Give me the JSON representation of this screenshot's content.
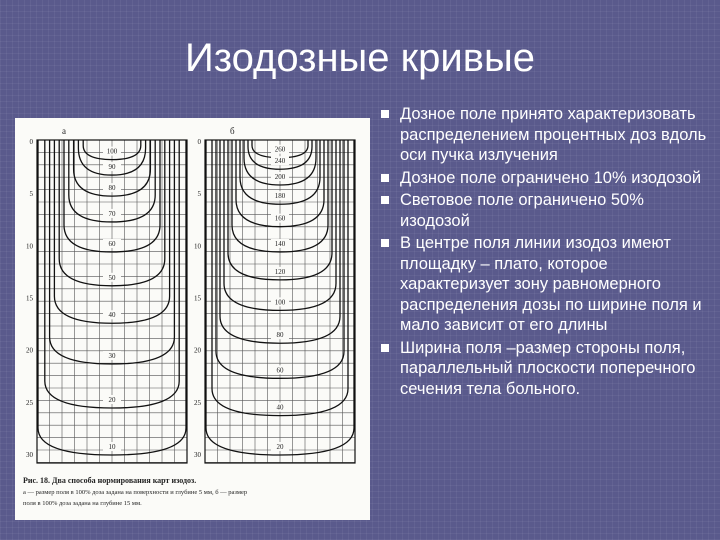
{
  "title": "Изодозные кривые",
  "bullets": [
    "Дозное поле принято характеризовать распределением процентных доз вдоль оси пучка излучения",
    "Дозное поле ограничено 10% изодозой",
    "Световое поле ограничено 50% изодозой",
    "В центре поля линии изодоз имеют площадку – плато, которое характеризует зону равномерного распределения дозы по ширине поля и мало зависит от его длины",
    "Ширина поля –размер стороны поля, параллельный плоскости поперечного сечения тела больного."
  ],
  "figure": {
    "panels": [
      {
        "label": "а",
        "depth_labels": [
          "0",
          "5",
          "10",
          "15",
          "20",
          "25",
          "30"
        ],
        "isodose_labels": [
          "100",
          "90",
          "80",
          "70",
          "60",
          "50",
          "40",
          "30",
          "20",
          "10"
        ]
      },
      {
        "label": "б",
        "depth_labels": [
          "0",
          "5",
          "10",
          "15",
          "20",
          "25",
          "30"
        ],
        "isodose_labels": [
          "260",
          "240",
          "200",
          "180",
          "160",
          "140",
          "120",
          "100",
          "80",
          "60",
          "40",
          "20"
        ]
      }
    ],
    "caption": [
      "Рис. 18. Два способа нормирования карт изодоз.",
      "а — размер поля в 100% доза задана на поверхности и глубине 5 мм, б — размер",
      "поля в 100% доза задана на глубине 15 мм."
    ]
  }
}
